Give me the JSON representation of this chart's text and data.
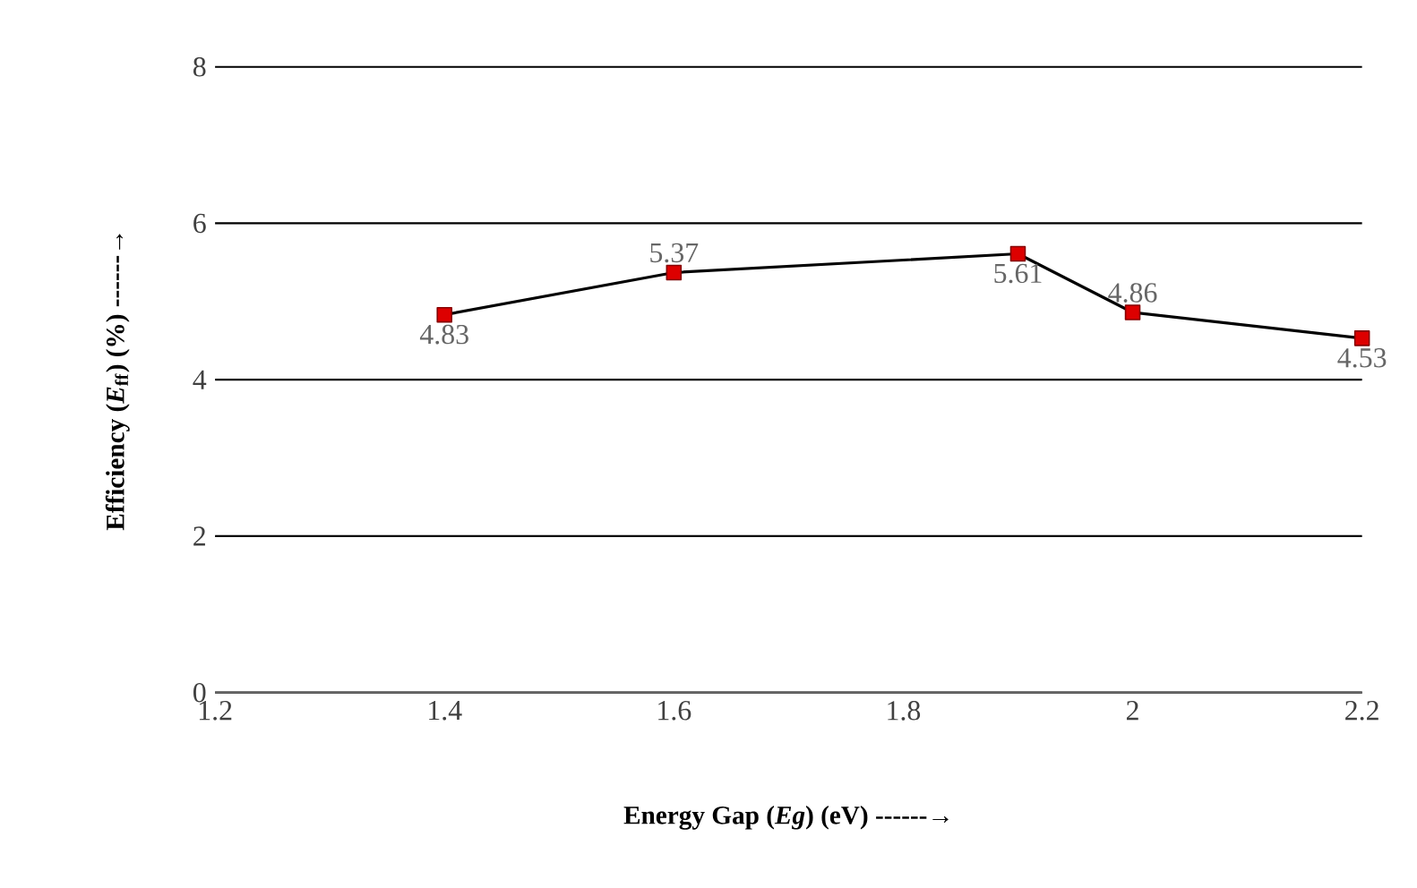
{
  "chart_data": {
    "type": "line",
    "xlabel": "Energy Gap (*Eg*) (eV) ------→",
    "ylabel": "Efficiency (*E*$_{ff}$) (%) ------→",
    "x": [
      1.4,
      1.6,
      1.9,
      2.0,
      2.2
    ],
    "series": [
      {
        "color": "#dd0000",
        "values": [
          4.83,
          5.37,
          5.61,
          4.86,
          4.53
        ]
      }
    ],
    "xlim": [
      1.2,
      2.2
    ],
    "xticks": [
      1.2,
      1.4,
      1.6,
      1.8,
      2,
      2.2
    ],
    "ylim": [
      0,
      8
    ],
    "yticks": [
      0,
      2,
      4,
      6,
      8
    ],
    "grid": "y",
    "marker": "square",
    "line_style": "solid",
    "data_labels": true
  }
}
